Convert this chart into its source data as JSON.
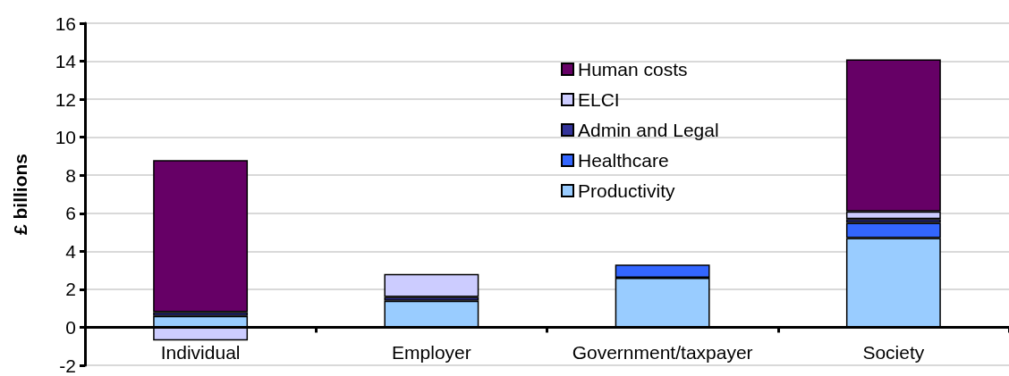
{
  "chart_data": {
    "type": "bar",
    "stacked": true,
    "ylabel": "£ billions",
    "categories": [
      "Individual",
      "Employer",
      "Government/taxpayer",
      "Society"
    ],
    "series": [
      {
        "name": "Productivity",
        "color": "#99ccff",
        "values": [
          0.6,
          1.4,
          2.6,
          4.7
        ]
      },
      {
        "name": "Healthcare",
        "color": "#3366ff",
        "values": [
          null,
          null,
          0.7,
          0.8
        ]
      },
      {
        "name": "Admin and Legal",
        "color": "#333399",
        "values": [
          0.2,
          0.2,
          null,
          0.2
        ]
      },
      {
        "name": "ELCI",
        "color": "#ccccff",
        "values": [
          -0.7,
          1.2,
          null,
          0.4
        ]
      },
      {
        "name": "Human costs",
        "color": "#660066",
        "values": [
          8.0,
          null,
          null,
          8.0
        ]
      }
    ],
    "ylim": [
      -2,
      16
    ],
    "yticks": [
      -2,
      0,
      2,
      4,
      6,
      8,
      10,
      12,
      14,
      16
    ],
    "grid": "y",
    "legend": "top"
  }
}
